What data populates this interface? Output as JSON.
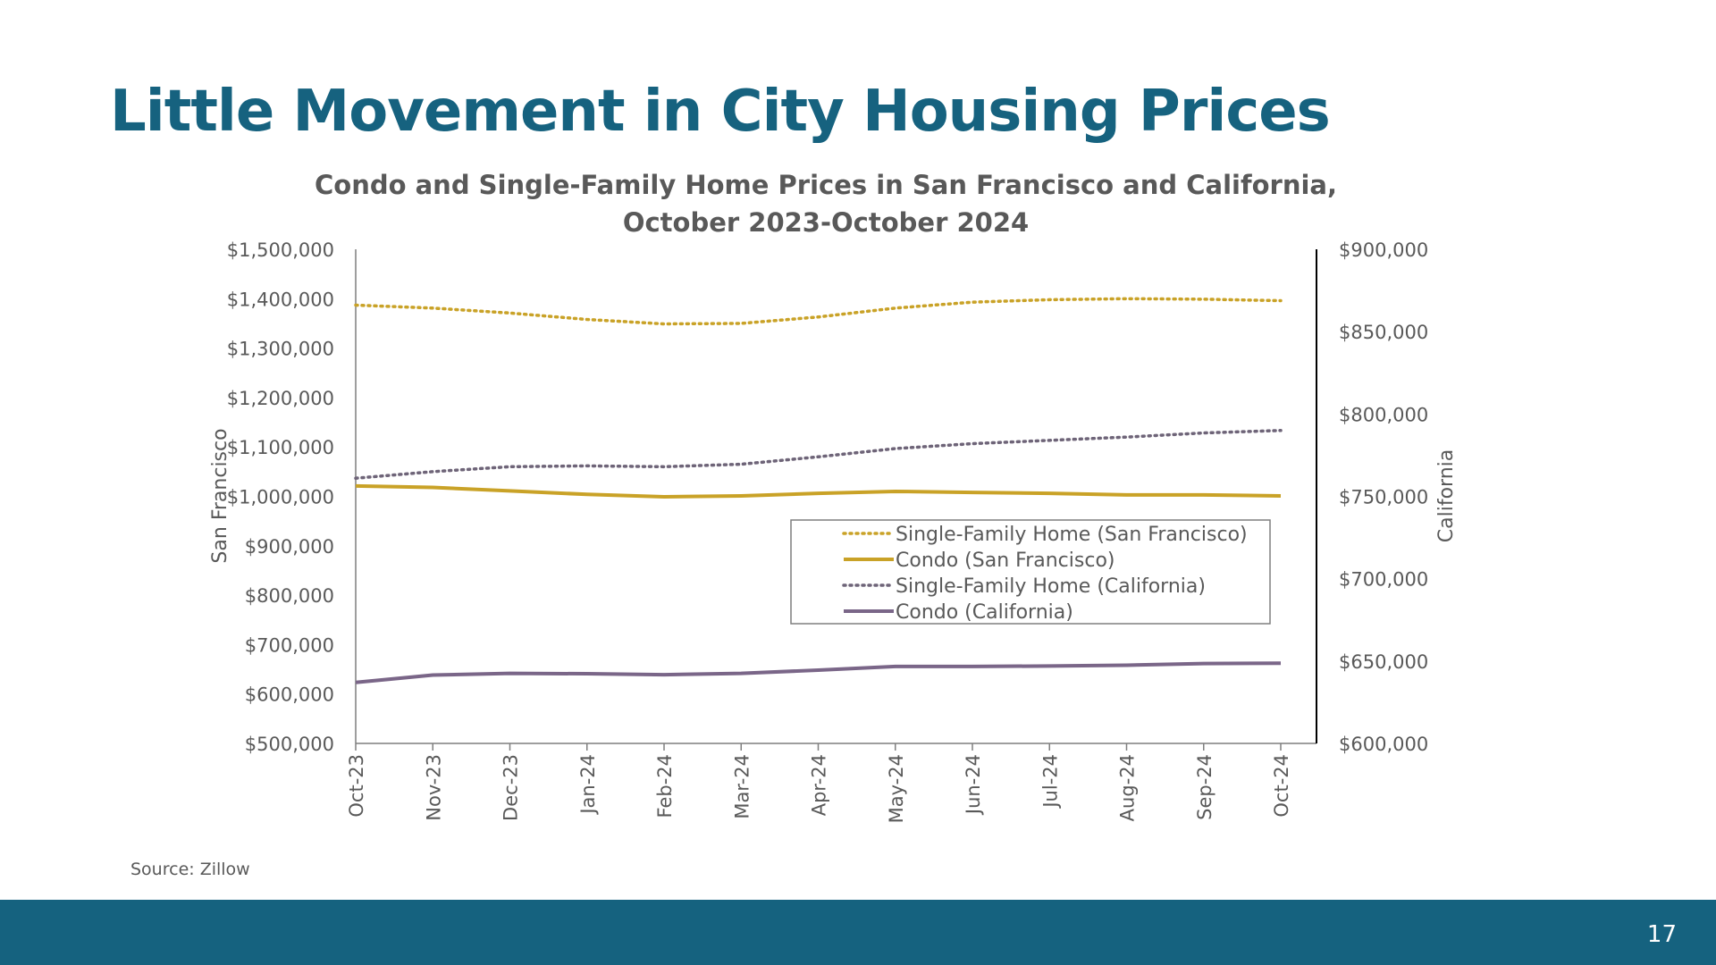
{
  "slide": {
    "title": "Little Movement in City Housing Prices",
    "source": "Source: Zillow",
    "page_number": "17"
  },
  "colors": {
    "title": "#16627f",
    "footer": "#15627f",
    "gold": "#c9a227",
    "purple": "#7a6688",
    "purple_dotted": "#6e6478",
    "axis_text": "#595959"
  },
  "chart_data": {
    "type": "line",
    "title": "Condo and Single-Family Home Prices in San Francisco and California, October 2023-October 2024",
    "title_lines": [
      "Condo and Single-Family Home Prices in San Francisco and California,",
      "October 2023-October 2024"
    ],
    "categories": [
      "Oct-23",
      "Nov-23",
      "Dec-23",
      "Jan-24",
      "Feb-24",
      "Mar-24",
      "Apr-24",
      "May-24",
      "Jun-24",
      "Jul-24",
      "Aug-24",
      "Sep-24",
      "Oct-24"
    ],
    "y_left": {
      "label": "San Francisco",
      "lim": [
        500000,
        1500000
      ],
      "ticks": [
        "$500,000",
        "$600,000",
        "$700,000",
        "$800,000",
        "$900,000",
        "$1,000,000",
        "$1,100,000",
        "$1,200,000",
        "$1,300,000",
        "$1,400,000",
        "$1,500,000"
      ]
    },
    "y_right": {
      "label": "California",
      "lim": [
        600000,
        900000
      ],
      "ticks": [
        "$600,000",
        "$650,000",
        "$700,000",
        "$750,000",
        "$800,000",
        "$850,000",
        "$900,000"
      ]
    },
    "series": [
      {
        "name": "Single-Family Home (San Francisco)",
        "axis": "left",
        "style": "dotted",
        "color": "#c9a227",
        "values": [
          1387000,
          1381000,
          1371000,
          1358000,
          1349000,
          1350000,
          1363000,
          1381000,
          1393000,
          1398000,
          1400000,
          1399000,
          1396000
        ]
      },
      {
        "name": "Condo (San Francisco)",
        "axis": "left",
        "style": "solid",
        "color": "#c9a227",
        "values": [
          1021000,
          1018000,
          1011000,
          1004000,
          999000,
          1001000,
          1006000,
          1010000,
          1008000,
          1006000,
          1003000,
          1003000,
          1001000
        ]
      },
      {
        "name": "Single-Family Home (California)",
        "axis": "right",
        "style": "dotted",
        "color": "#6e6478",
        "values": [
          761000,
          765000,
          768000,
          768500,
          768000,
          769500,
          774000,
          779000,
          782000,
          784000,
          786000,
          788500,
          790000
        ]
      },
      {
        "name": "Condo (California)",
        "axis": "right",
        "style": "solid",
        "color": "#7a6688",
        "values": [
          637000,
          641500,
          642500,
          642300,
          641700,
          642500,
          644500,
          646700,
          646700,
          647000,
          647500,
          648500,
          648700
        ]
      }
    ],
    "legend": {
      "placement": "bottom-right-inside"
    },
    "grid": false
  }
}
